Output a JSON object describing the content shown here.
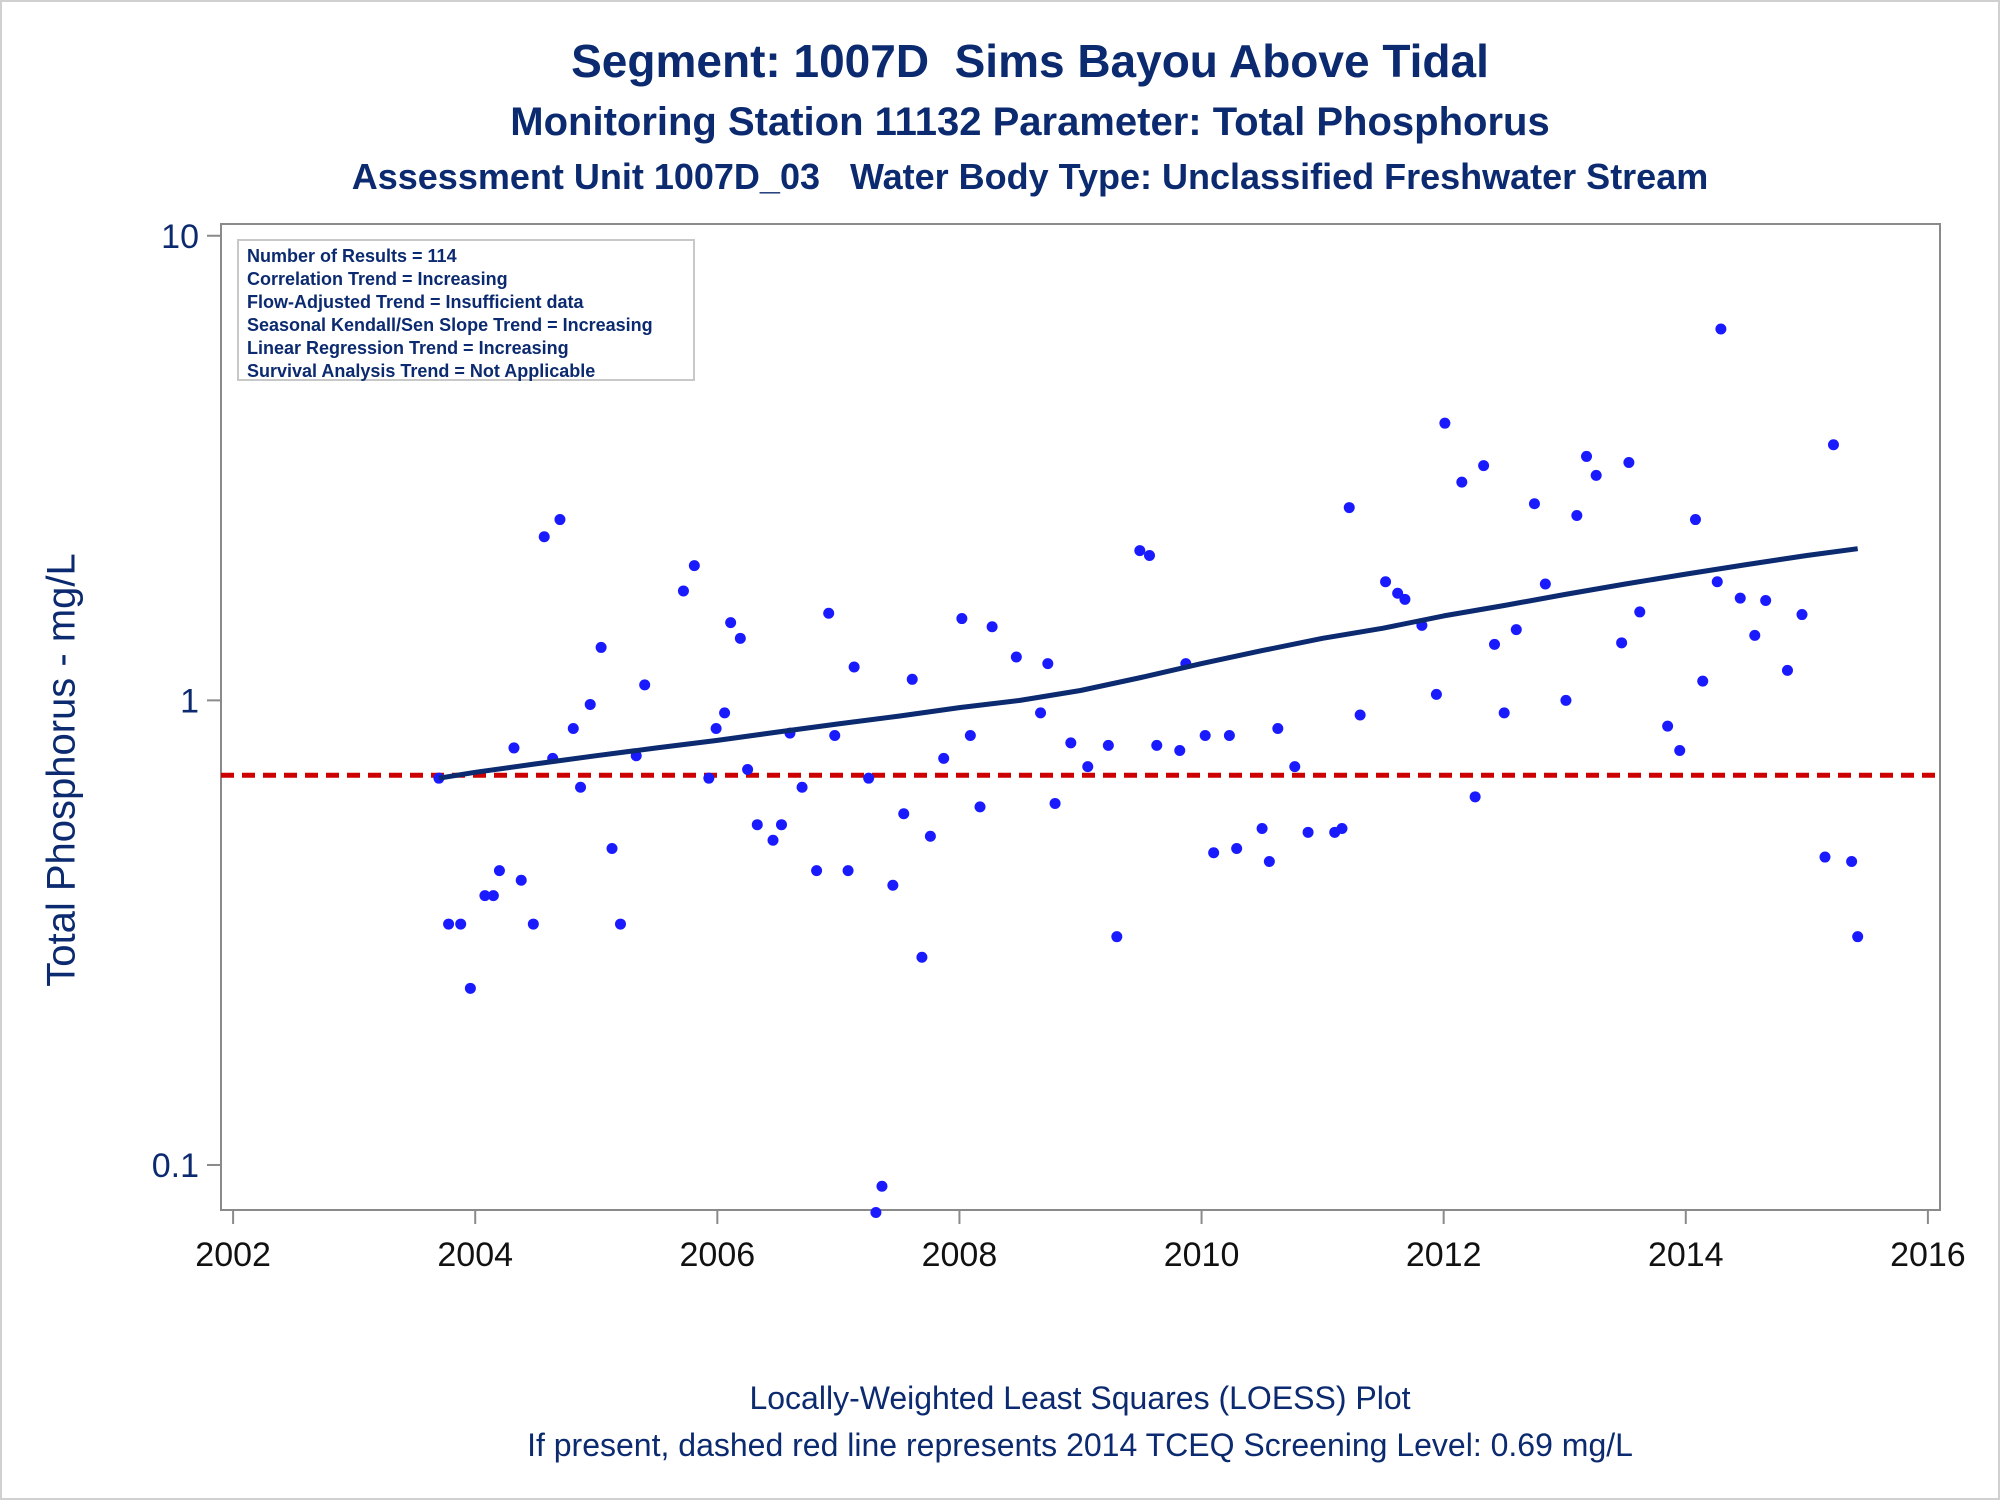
{
  "titles": {
    "line1": "Segment: 1007D  Sims Bayou Above Tidal",
    "line2": "Monitoring Station 11132 Parameter: Total Phosphorus",
    "line3": "Assessment Unit 1007D_03   Water Body Type: Unclassified Freshwater Stream"
  },
  "footnotes": {
    "line1": "Locally-Weighted Least Squares (LOESS) Plot",
    "line2": "If present, dashed red line represents 2014 TCEQ Screening Level: 0.69 mg/L"
  },
  "stats": {
    "results": "Number of Results = 114",
    "correlation": "Correlation Trend = Increasing",
    "flow_adjusted": "Flow-Adjusted Trend = Insufficient data",
    "seasonal_kendall": "Seasonal Kendall/Sen Slope Trend = Increasing",
    "linear_regression": "Linear Regression Trend = Increasing",
    "survival": "Survival Analysis Trend = Not Applicable"
  },
  "colors": {
    "text": "#0b2a6f",
    "points": "#1a1aff",
    "loess": "#0b2a6f",
    "screening": "#cc0000",
    "axis": "#8a8a8a"
  },
  "chart_data": {
    "type": "scatter",
    "xlabel": "",
    "ylabel": "Total Phosphorus - mg/L",
    "yscale": "log",
    "xlim": [
      2001.9,
      2016.1
    ],
    "ylim": [
      0.08,
      10.6
    ],
    "x_ticks": [
      "2002",
      "2004",
      "2006",
      "2008",
      "2010",
      "2012",
      "2014",
      "2016"
    ],
    "y_ticks": [
      "0.1",
      "1",
      "10"
    ],
    "screening_level": 0.69,
    "points": [
      {
        "x": 2003.7,
        "y": 0.68
      },
      {
        "x": 2003.78,
        "y": 0.33
      },
      {
        "x": 2003.88,
        "y": 0.33
      },
      {
        "x": 2003.96,
        "y": 0.24
      },
      {
        "x": 2004.08,
        "y": 0.38
      },
      {
        "x": 2004.15,
        "y": 0.38
      },
      {
        "x": 2004.2,
        "y": 0.43
      },
      {
        "x": 2004.32,
        "y": 0.79
      },
      {
        "x": 2004.38,
        "y": 0.41
      },
      {
        "x": 2004.48,
        "y": 0.33
      },
      {
        "x": 2004.57,
        "y": 2.25
      },
      {
        "x": 2004.64,
        "y": 0.75
      },
      {
        "x": 2004.7,
        "y": 2.45
      },
      {
        "x": 2004.81,
        "y": 0.87
      },
      {
        "x": 2004.87,
        "y": 0.65
      },
      {
        "x": 2004.95,
        "y": 0.98
      },
      {
        "x": 2005.04,
        "y": 1.3
      },
      {
        "x": 2005.13,
        "y": 0.48
      },
      {
        "x": 2005.2,
        "y": 0.33
      },
      {
        "x": 2005.33,
        "y": 0.76
      },
      {
        "x": 2005.4,
        "y": 1.08
      },
      {
        "x": 2005.72,
        "y": 1.72
      },
      {
        "x": 2005.81,
        "y": 1.95
      },
      {
        "x": 2005.93,
        "y": 0.68
      },
      {
        "x": 2005.99,
        "y": 0.87
      },
      {
        "x": 2006.06,
        "y": 0.94
      },
      {
        "x": 2006.11,
        "y": 1.47
      },
      {
        "x": 2006.19,
        "y": 1.36
      },
      {
        "x": 2006.25,
        "y": 0.71
      },
      {
        "x": 2006.33,
        "y": 0.54
      },
      {
        "x": 2006.46,
        "y": 0.5
      },
      {
        "x": 2006.53,
        "y": 0.54
      },
      {
        "x": 2006.6,
        "y": 0.85
      },
      {
        "x": 2006.7,
        "y": 0.65
      },
      {
        "x": 2006.82,
        "y": 0.43
      },
      {
        "x": 2006.92,
        "y": 1.54
      },
      {
        "x": 2006.97,
        "y": 0.84
      },
      {
        "x": 2007.08,
        "y": 0.43
      },
      {
        "x": 2007.13,
        "y": 1.18
      },
      {
        "x": 2007.25,
        "y": 0.68
      },
      {
        "x": 2007.31,
        "y": 0.079
      },
      {
        "x": 2007.36,
        "y": 0.09
      },
      {
        "x": 2007.45,
        "y": 0.4
      },
      {
        "x": 2007.54,
        "y": 0.57
      },
      {
        "x": 2007.61,
        "y": 1.11
      },
      {
        "x": 2007.69,
        "y": 0.28
      },
      {
        "x": 2007.76,
        "y": 0.51
      },
      {
        "x": 2007.87,
        "y": 0.75
      },
      {
        "x": 2008.02,
        "y": 1.5
      },
      {
        "x": 2008.09,
        "y": 0.84
      },
      {
        "x": 2008.17,
        "y": 0.59
      },
      {
        "x": 2008.27,
        "y": 1.44
      },
      {
        "x": 2008.47,
        "y": 1.24
      },
      {
        "x": 2008.67,
        "y": 0.94
      },
      {
        "x": 2008.73,
        "y": 1.2
      },
      {
        "x": 2008.79,
        "y": 0.6
      },
      {
        "x": 2008.92,
        "y": 0.81
      },
      {
        "x": 2009.06,
        "y": 0.72
      },
      {
        "x": 2009.23,
        "y": 0.8
      },
      {
        "x": 2009.3,
        "y": 0.31
      },
      {
        "x": 2009.49,
        "y": 2.1
      },
      {
        "x": 2009.57,
        "y": 2.05
      },
      {
        "x": 2009.63,
        "y": 0.8
      },
      {
        "x": 2009.82,
        "y": 0.78
      },
      {
        "x": 2009.87,
        "y": 1.2
      },
      {
        "x": 2010.03,
        "y": 0.84
      },
      {
        "x": 2010.1,
        "y": 0.47
      },
      {
        "x": 2010.23,
        "y": 0.84
      },
      {
        "x": 2010.29,
        "y": 0.48
      },
      {
        "x": 2010.5,
        "y": 0.53
      },
      {
        "x": 2010.56,
        "y": 0.45
      },
      {
        "x": 2010.63,
        "y": 0.87
      },
      {
        "x": 2010.77,
        "y": 0.72
      },
      {
        "x": 2010.88,
        "y": 0.52
      },
      {
        "x": 2011.1,
        "y": 0.52
      },
      {
        "x": 2011.16,
        "y": 0.53
      },
      {
        "x": 2011.22,
        "y": 2.6
      },
      {
        "x": 2011.31,
        "y": 0.93
      },
      {
        "x": 2011.52,
        "y": 1.8
      },
      {
        "x": 2011.62,
        "y": 1.7
      },
      {
        "x": 2011.68,
        "y": 1.65
      },
      {
        "x": 2011.82,
        "y": 1.45
      },
      {
        "x": 2011.94,
        "y": 1.03
      },
      {
        "x": 2012.01,
        "y": 3.95
      },
      {
        "x": 2012.15,
        "y": 2.95
      },
      {
        "x": 2012.26,
        "y": 0.62
      },
      {
        "x": 2012.33,
        "y": 3.2
      },
      {
        "x": 2012.42,
        "y": 1.32
      },
      {
        "x": 2012.5,
        "y": 0.94
      },
      {
        "x": 2012.6,
        "y": 1.42
      },
      {
        "x": 2012.75,
        "y": 2.65
      },
      {
        "x": 2012.84,
        "y": 1.78
      },
      {
        "x": 2013.01,
        "y": 1.0
      },
      {
        "x": 2013.1,
        "y": 2.5
      },
      {
        "x": 2013.18,
        "y": 3.35
      },
      {
        "x": 2013.26,
        "y": 3.05
      },
      {
        "x": 2013.47,
        "y": 1.33
      },
      {
        "x": 2013.53,
        "y": 3.25
      },
      {
        "x": 2013.62,
        "y": 1.55
      },
      {
        "x": 2013.85,
        "y": 0.88
      },
      {
        "x": 2013.95,
        "y": 0.78
      },
      {
        "x": 2014.08,
        "y": 2.45
      },
      {
        "x": 2014.14,
        "y": 1.1
      },
      {
        "x": 2014.26,
        "y": 1.8
      },
      {
        "x": 2014.29,
        "y": 6.3
      },
      {
        "x": 2014.45,
        "y": 1.66
      },
      {
        "x": 2014.57,
        "y": 1.38
      },
      {
        "x": 2014.66,
        "y": 1.64
      },
      {
        "x": 2014.84,
        "y": 1.16
      },
      {
        "x": 2014.96,
        "y": 1.53
      },
      {
        "x": 2015.15,
        "y": 0.46
      },
      {
        "x": 2015.22,
        "y": 3.55
      },
      {
        "x": 2015.37,
        "y": 0.45
      },
      {
        "x": 2015.42,
        "y": 0.31
      }
    ],
    "loess": [
      {
        "x": 2003.7,
        "y": 0.68
      },
      {
        "x": 2004.0,
        "y": 0.7
      },
      {
        "x": 2004.5,
        "y": 0.73
      },
      {
        "x": 2005.0,
        "y": 0.76
      },
      {
        "x": 2005.5,
        "y": 0.79
      },
      {
        "x": 2006.0,
        "y": 0.82
      },
      {
        "x": 2006.5,
        "y": 0.855
      },
      {
        "x": 2007.0,
        "y": 0.89
      },
      {
        "x": 2007.5,
        "y": 0.925
      },
      {
        "x": 2008.0,
        "y": 0.965
      },
      {
        "x": 2008.5,
        "y": 1.0
      },
      {
        "x": 2009.0,
        "y": 1.05
      },
      {
        "x": 2009.5,
        "y": 1.12
      },
      {
        "x": 2010.0,
        "y": 1.2
      },
      {
        "x": 2010.5,
        "y": 1.28
      },
      {
        "x": 2011.0,
        "y": 1.36
      },
      {
        "x": 2011.5,
        "y": 1.43
      },
      {
        "x": 2012.0,
        "y": 1.52
      },
      {
        "x": 2012.5,
        "y": 1.6
      },
      {
        "x": 2013.0,
        "y": 1.69
      },
      {
        "x": 2013.5,
        "y": 1.78
      },
      {
        "x": 2014.0,
        "y": 1.87
      },
      {
        "x": 2014.5,
        "y": 1.96
      },
      {
        "x": 2015.0,
        "y": 2.05
      },
      {
        "x": 2015.42,
        "y": 2.12
      }
    ]
  }
}
